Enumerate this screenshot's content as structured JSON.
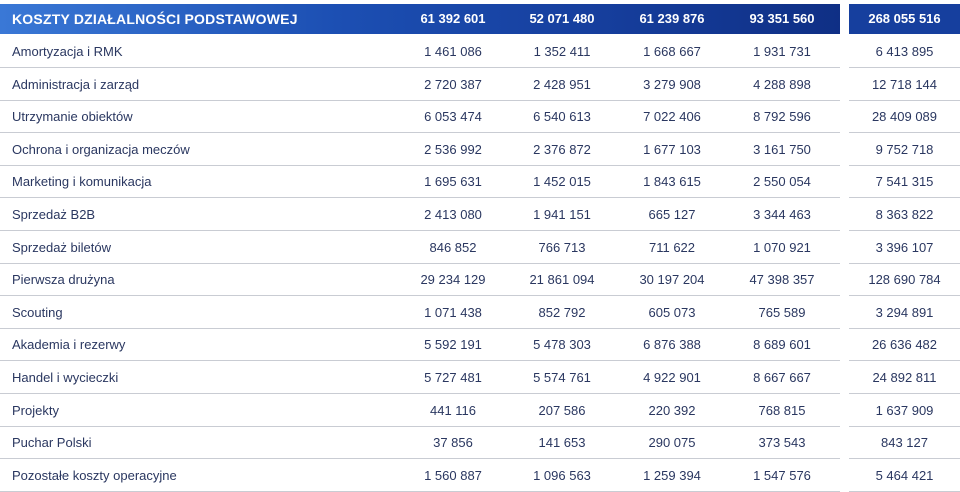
{
  "header": {
    "title": "KOSZTY DZIAŁALNOŚCI PODSTAWOWEJ",
    "values": [
      "61 392 601",
      "52 071 480",
      "61 239 876",
      "93 351 560"
    ],
    "total": "268 055 516"
  },
  "rows": [
    {
      "label": "Amortyzacja i RMK",
      "values": [
        "1 461 086",
        "1 352 411",
        "1 668 667",
        "1 931 731"
      ],
      "total": "6 413 895"
    },
    {
      "label": "Administracja i zarząd",
      "values": [
        "2 720 387",
        "2 428 951",
        "3 279 908",
        "4 288 898"
      ],
      "total": "12 718 144"
    },
    {
      "label": "Utrzymanie obiektów",
      "values": [
        "6 053 474",
        "6 540 613",
        "7 022 406",
        "8 792 596"
      ],
      "total": "28 409 089"
    },
    {
      "label": "Ochrona i organizacja meczów",
      "values": [
        "2 536 992",
        "2 376 872",
        "1 677 103",
        "3 161 750"
      ],
      "total": "9 752 718"
    },
    {
      "label": "Marketing i komunikacja",
      "values": [
        "1 695 631",
        "1 452 015",
        "1 843 615",
        "2 550 054"
      ],
      "total": "7 541 315"
    },
    {
      "label": "Sprzedaż B2B",
      "values": [
        "2 413 080",
        "1 941 151",
        "665 127",
        "3 344 463"
      ],
      "total": "8 363 822"
    },
    {
      "label": "Sprzedaż biletów",
      "values": [
        "846 852",
        "766 713",
        "711 622",
        "1 070 921"
      ],
      "total": "3 396 107"
    },
    {
      "label": "Pierwsza drużyna",
      "values": [
        "29 234 129",
        "21 861 094",
        "30 197 204",
        "47 398 357"
      ],
      "total": "128 690 784"
    },
    {
      "label": "Scouting",
      "values": [
        "1 071 438",
        "852 792",
        "605 073",
        "765 589"
      ],
      "total": "3 294 891"
    },
    {
      "label": "Akademia i rezerwy",
      "values": [
        "5 592 191",
        "5 478 303",
        "6 876 388",
        "8 689 601"
      ],
      "total": "26 636 482"
    },
    {
      "label": "Handel i wycieczki",
      "values": [
        "5 727 481",
        "5 574 761",
        "4 922 901",
        "8 667 667"
      ],
      "total": "24 892 811"
    },
    {
      "label": "Projekty",
      "values": [
        "441 116",
        "207 586",
        "220 392",
        "768 815"
      ],
      "total": "1 637 909"
    },
    {
      "label": "Puchar Polski",
      "values": [
        "37 856",
        "141 653",
        "290 075",
        "373 543"
      ],
      "total": "843 127"
    },
    {
      "label": "Pozostałe koszty operacyjne",
      "values": [
        "1 560 887",
        "1 096 563",
        "1 259 394",
        "1 547 576"
      ],
      "total": "5 464 421"
    }
  ]
}
